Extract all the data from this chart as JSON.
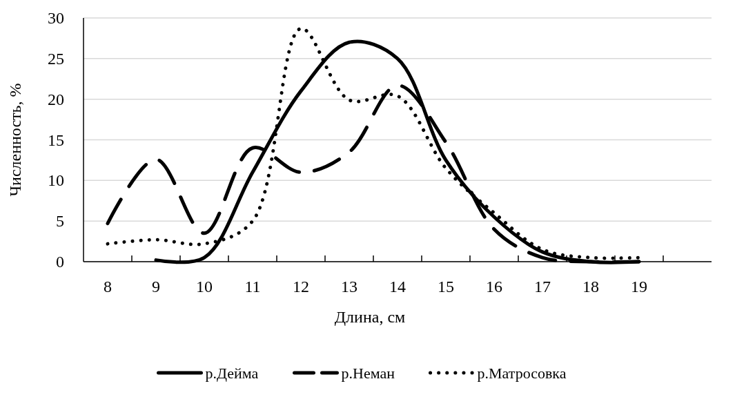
{
  "chart_data": {
    "type": "line",
    "xlabel": "Длина, см",
    "ylabel": "Численность, %",
    "categories": [
      "8",
      "9",
      "10",
      "11",
      "12",
      "13",
      "14",
      "15",
      "16",
      "17",
      "18",
      "19",
      null
    ],
    "series": [
      {
        "name": "р.Дейма",
        "color": "#000000",
        "line_style": "solid",
        "values": [
          null,
          0.2,
          0.5,
          11,
          21,
          27,
          25,
          12.5,
          5.5,
          1.2,
          0,
          0,
          null
        ]
      },
      {
        "name": "р.Неман",
        "color": "#000000",
        "line_style": "dashed",
        "values": [
          4.7,
          12.6,
          3.5,
          14,
          11,
          13.5,
          21.7,
          14.7,
          4,
          0.5,
          0,
          0,
          null
        ]
      },
      {
        "name": "р.Матросовка",
        "color": "#000000",
        "line_style": "dotted",
        "values": [
          2.2,
          2.7,
          2.2,
          5,
          28.7,
          19.9,
          20.4,
          11.5,
          6,
          1.5,
          0.5,
          0.5,
          null
        ]
      }
    ],
    "ylim": [
      0,
      30
    ],
    "yticks": [
      0,
      5,
      10,
      15,
      20,
      25,
      30
    ],
    "grid": "y",
    "legend": "bottom",
    "marker": "none"
  }
}
